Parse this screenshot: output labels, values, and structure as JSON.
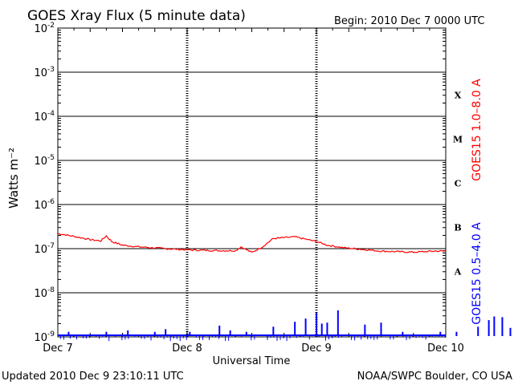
{
  "chart_data": {
    "type": "line",
    "title": "GOES Xray Flux (5 minute data)",
    "begin_label": "Begin:  2010 Dec 7 0000 UTC",
    "xlabel": "Universal Time",
    "ylabel": "Watts m⁻²",
    "y_scale": "log",
    "ylim": [
      1e-09,
      0.01
    ],
    "xlim_days": [
      "Dec 7",
      "Dec 10"
    ],
    "x_tick_labels": [
      "Dec 7",
      "Dec 8",
      "Dec 9",
      "Dec 10"
    ],
    "y_ticks": [
      {
        "base": "10",
        "exp": "-2"
      },
      {
        "base": "10",
        "exp": "-3"
      },
      {
        "base": "10",
        "exp": "-4"
      },
      {
        "base": "10",
        "exp": "-5"
      },
      {
        "base": "10",
        "exp": "-6"
      },
      {
        "base": "10",
        "exp": "-7"
      },
      {
        "base": "10",
        "exp": "-8"
      },
      {
        "base": "10",
        "exp": "-9"
      }
    ],
    "flare_classes": [
      {
        "label": "X",
        "exp": -4
      },
      {
        "label": "M",
        "exp": -5
      },
      {
        "label": "C",
        "exp": -6
      },
      {
        "label": "B",
        "exp": -7
      },
      {
        "label": "A",
        "exp": -8
      }
    ],
    "grid": true,
    "series": [
      {
        "name": "GOES15 1.0–8.0 A",
        "color": "#ff0000",
        "x_hours": [
          0,
          3,
          6,
          8,
          9,
          10,
          12,
          15,
          20,
          25,
          30,
          33,
          34,
          36,
          38,
          40,
          44,
          48,
          50,
          53,
          55,
          60,
          66,
          70,
          72,
          78,
          84,
          90,
          96
        ],
        "values": [
          2.2e-07,
          1.9e-07,
          1.6e-07,
          1.5e-07,
          1.95e-07,
          1.45e-07,
          1.2e-07,
          1.1e-07,
          1e-07,
          9.3e-08,
          9e-08,
          9e-08,
          1.1e-07,
          8.2e-08,
          1.1e-07,
          1.7e-07,
          1.85e-07,
          1.45e-07,
          1.2e-07,
          1.05e-07,
          1e-07,
          8.8e-08,
          8.3e-08,
          8.8e-08,
          8.8e-08,
          9.2e-08,
          9.3e-08,
          9.2e-08,
          9e-08
        ]
      },
      {
        "name": "GOES15 0.5–4.0 A",
        "color": "#0000ff",
        "baseline": 7e-10,
        "spike_x_hours": [
          2,
          9,
          13,
          18,
          20,
          24.5,
          30,
          32,
          35,
          40,
          44,
          46,
          48,
          49,
          50,
          52,
          57,
          60,
          64,
          71,
          74,
          78,
          80,
          81,
          82.5,
          84,
          86,
          88,
          90,
          94
        ],
        "spike_values": [
          1.3e-09,
          1.3e-09,
          1.4e-09,
          1.3e-09,
          1.5e-09,
          1.3e-09,
          1.8e-09,
          1.4e-09,
          1.3e-09,
          1.7e-09,
          2.2e-09,
          2.6e-09,
          3.5e-09,
          2e-09,
          2.1e-09,
          4e-09,
          1.9e-09,
          2.1e-09,
          1.3e-09,
          1.3e-09,
          1.3e-09,
          1.7e-09,
          2.4e-09,
          2.9e-09,
          2.8e-09,
          1.6e-09,
          1.8e-09,
          1.4e-09,
          1.6e-09,
          1.2e-09
        ]
      }
    ]
  },
  "footer": {
    "updated": "Updated 2010 Dec  9 23:10:11 UTC",
    "source": "NOAA/SWPC Boulder, CO USA"
  }
}
